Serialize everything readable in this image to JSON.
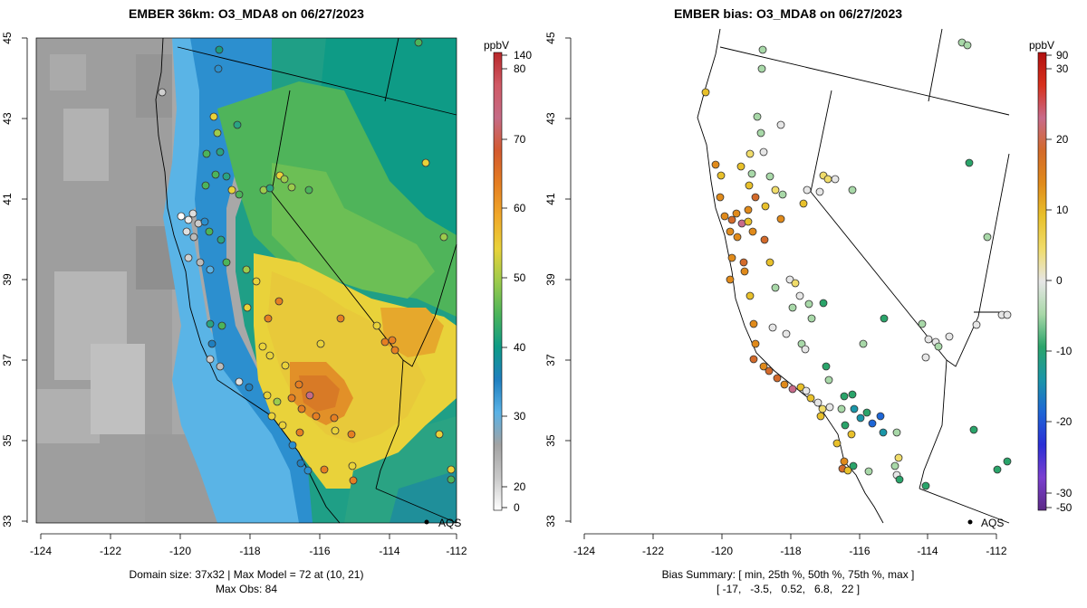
{
  "left_panel": {
    "title": "EMBER 36km: O3_MDA8 on 06/27/2023",
    "caption_line1": "Domain size: 37x32 | Max Model = 72 at (10, 21)",
    "caption_line2": "Max Obs: 84",
    "colorbar_unit": "ppbV",
    "colorbar_ticks": [
      "140",
      "80",
      "70",
      "60",
      "50",
      "40",
      "30",
      "20",
      "0"
    ],
    "colorbar_colors": [
      "#ffffff",
      "#c8c8c8",
      "#a3a3a3",
      "#5ab2e6",
      "#1f7fbf",
      "#0e9b86",
      "#4cb45a",
      "#9ccb4c",
      "#e9d23a",
      "#f0a82a",
      "#e57e22",
      "#d35a30",
      "#c56b86",
      "#d05a66",
      "#b8282a"
    ]
  },
  "right_panel": {
    "title": "EMBER bias: O3_MDA8 on 06/27/2023",
    "caption_line1": "Bias Summary: [ min, 25th %, 50th %, 75th %, max ]",
    "caption_line2": "[ -17,   -3.5,   0.52,   6.8,   22 ]",
    "colorbar_unit": "ppbV",
    "colorbar_ticks": [
      "90",
      "30",
      "20",
      "10",
      "0",
      "-10",
      "-20",
      "-30",
      "-50"
    ],
    "colorbar_colors": [
      "#5b2a86",
      "#7b3fd0",
      "#2b2fd6",
      "#1e66d6",
      "#1a96a8",
      "#2aa46a",
      "#a8d8a8",
      "#e6e6e6",
      "#f0dc6a",
      "#e8c02a",
      "#e08a1a",
      "#d36a2a",
      "#c86a8a",
      "#d8301c",
      "#b01010"
    ]
  },
  "shared": {
    "lon_labels": [
      "-124",
      "-122",
      "-120",
      "-118",
      "-116",
      "-114",
      "-112"
    ],
    "lat_labels": [
      "45",
      "43",
      "41",
      "39",
      "37",
      "35",
      "33"
    ],
    "station_label": "AQS"
  }
}
